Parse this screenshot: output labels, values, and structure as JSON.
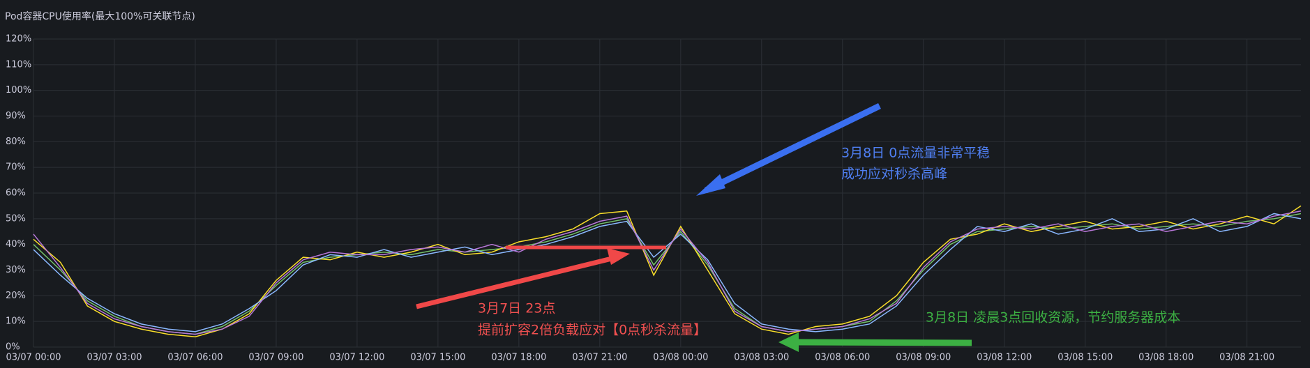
{
  "chart_data": {
    "type": "line",
    "title": "Pod容器CPU使用率(最大100%可关联节点)",
    "x": [
      "03/07 00:00",
      "03/07 01:00",
      "03/07 02:00",
      "03/07 03:00",
      "03/07 04:00",
      "03/07 05:00",
      "03/07 06:00",
      "03/07 07:00",
      "03/07 08:00",
      "03/07 09:00",
      "03/07 10:00",
      "03/07 11:00",
      "03/07 12:00",
      "03/07 13:00",
      "03/07 14:00",
      "03/07 15:00",
      "03/07 16:00",
      "03/07 17:00",
      "03/07 18:00",
      "03/07 19:00",
      "03/07 20:00",
      "03/07 21:00",
      "03/07 22:00",
      "03/07 23:00",
      "03/08 00:00",
      "03/08 01:00",
      "03/08 02:00",
      "03/08 03:00",
      "03/08 04:00",
      "03/08 05:00",
      "03/08 06:00",
      "03/08 07:00",
      "03/08 08:00",
      "03/08 09:00",
      "03/08 10:00",
      "03/08 11:00",
      "03/08 12:00",
      "03/08 13:00",
      "03/08 14:00",
      "03/08 15:00",
      "03/08 16:00",
      "03/08 17:00",
      "03/08 18:00",
      "03/08 19:00",
      "03/08 20:00",
      "03/08 21:00",
      "03/08 22:00",
      "03/08 23:00"
    ],
    "series": [
      {
        "color": "#73bf69",
        "values": [
          40,
          30,
          18,
          12,
          8,
          6,
          5,
          8,
          14,
          24,
          33,
          35,
          36,
          37,
          36,
          38,
          37,
          38,
          39,
          41,
          44,
          48,
          50,
          32,
          45,
          32,
          15,
          8,
          6,
          7,
          8,
          10,
          18,
          30,
          40,
          45,
          46,
          47,
          46,
          47,
          48,
          46,
          47,
          48,
          47,
          49,
          50,
          52
        ]
      },
      {
        "color": "#fade2a",
        "values": [
          42,
          33,
          16,
          10,
          7,
          5,
          4,
          7,
          13,
          26,
          35,
          34,
          37,
          35,
          37,
          40,
          36,
          37,
          41,
          43,
          46,
          52,
          53,
          28,
          47,
          30,
          13,
          7,
          5,
          8,
          9,
          12,
          20,
          33,
          42,
          44,
          48,
          45,
          47,
          49,
          46,
          47,
          49,
          46,
          48,
          51,
          48,
          55
        ]
      },
      {
        "color": "#8ab8ff",
        "values": [
          38,
          28,
          19,
          13,
          9,
          7,
          6,
          9,
          15,
          22,
          32,
          36,
          35,
          38,
          35,
          37,
          39,
          36,
          38,
          40,
          43,
          47,
          49,
          35,
          44,
          34,
          17,
          9,
          7,
          6,
          7,
          9,
          16,
          28,
          38,
          47,
          45,
          48,
          44,
          46,
          50,
          45,
          46,
          50,
          45,
          47,
          52,
          50
        ]
      },
      {
        "color": "#b877d9",
        "values": [
          44,
          31,
          17,
          11,
          8,
          6,
          5,
          7,
          12,
          25,
          34,
          37,
          36,
          36,
          38,
          39,
          37,
          40,
          37,
          42,
          45,
          49,
          51,
          30,
          46,
          33,
          14,
          8,
          6,
          7,
          8,
          11,
          17,
          31,
          41,
          46,
          47,
          46,
          48,
          45,
          47,
          48,
          45,
          47,
          49,
          48,
          51,
          53
        ]
      }
    ],
    "xlim": [
      "03/07 00:00",
      "03/08 23:00"
    ],
    "xticks": [
      "03/07 00:00",
      "03/07 03:00",
      "03/07 06:00",
      "03/07 09:00",
      "03/07 12:00",
      "03/07 15:00",
      "03/07 18:00",
      "03/07 21:00",
      "03/08 00:00",
      "03/08 03:00",
      "03/08 06:00",
      "03/08 09:00",
      "03/08 12:00",
      "03/08 15:00",
      "03/08 18:00",
      "03/08 21:00"
    ],
    "ylim": [
      0,
      120
    ],
    "yticks": [
      {
        "value": 0,
        "label": "0%"
      },
      {
        "value": 10,
        "label": "10%"
      },
      {
        "value": 20,
        "label": "20%"
      },
      {
        "value": 30,
        "label": "30%"
      },
      {
        "value": 40,
        "label": "40%"
      },
      {
        "value": 50,
        "label": "50%"
      },
      {
        "value": 60,
        "label": "60%"
      },
      {
        "value": 70,
        "label": "70%"
      },
      {
        "value": 80,
        "label": "80%"
      },
      {
        "value": 90,
        "label": "90%"
      },
      {
        "value": 100,
        "label": "100%"
      },
      {
        "value": 110,
        "label": "110%"
      },
      {
        "value": 120,
        "label": "120%"
      }
    ],
    "grid": true,
    "annotations": [
      {
        "text": "3月8日 0点流量非常平稳"
      },
      {
        "text": "成功应对秒杀高峰"
      },
      {
        "text": "3月7日 23点"
      },
      {
        "text": "提前扩容2倍负载应对【0点秒杀流量】"
      },
      {
        "text": "3月8日 凌晨3点回收资源，节约服务器成本"
      }
    ]
  }
}
